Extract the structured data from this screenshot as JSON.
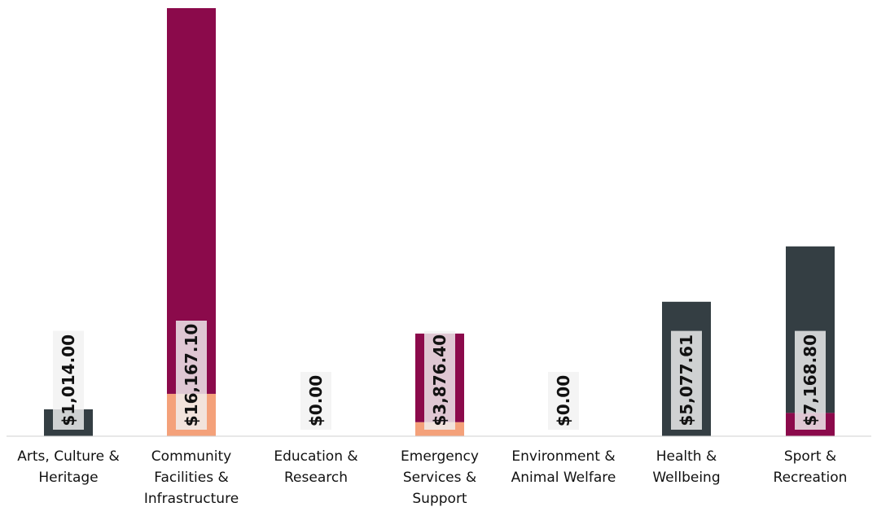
{
  "chart_data": {
    "type": "bar",
    "stacked": true,
    "title": "",
    "xlabel": "",
    "ylabel": "",
    "categories": [
      [
        "Arts, Culture &",
        "Heritage"
      ],
      [
        "Community",
        "Facilities &",
        "Infrastructure"
      ],
      [
        "Education &",
        "Research"
      ],
      [
        "Emergency",
        "Services &",
        "Support"
      ],
      [
        "Environment &",
        "Animal Welfare"
      ],
      [
        "Health &",
        "Wellbeing"
      ],
      [
        "Sport &",
        "Recreation"
      ]
    ],
    "series": [
      {
        "color": "#F4A17A",
        "values": [
          0,
          1600,
          0,
          530,
          0,
          0,
          0
        ]
      },
      {
        "color": "#8B0A4B",
        "values": [
          0,
          14567.1,
          0,
          3346.4,
          0,
          0,
          880
        ]
      },
      {
        "color": "#343E43",
        "values": [
          1014,
          0,
          0,
          0,
          0,
          5077.61,
          6288.8
        ]
      }
    ],
    "totals": [
      "$1,014.00",
      "$16,167.10",
      "$0.00",
      "$3,876.40",
      "$0.00",
      "$5,077.61",
      "$7,168.80"
    ],
    "total_values": [
      1014,
      16167.1,
      0,
      3876.4,
      0,
      5077.61,
      7168.8
    ],
    "ylim": [
      0,
      16167.1
    ],
    "grid": false,
    "legend": "none",
    "label_box_color": "#F2F2F2"
  }
}
